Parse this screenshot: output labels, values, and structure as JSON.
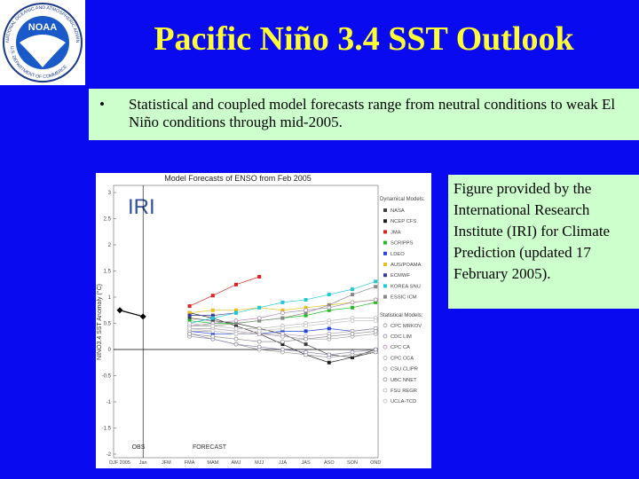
{
  "logo": {
    "name": "NOAA",
    "ring_top": "NATIONAL OCEANIC AND ATMOSPHERIC ADMINISTRATION",
    "ring_bottom": "U.S. DEPARTMENT OF COMMERCE"
  },
  "title": "Pacific Niño 3.4 SST Outlook",
  "bullet": {
    "marker": "•",
    "text": "Statistical and coupled model forecasts range from neutral conditions to weak El Niño conditions through mid-2005."
  },
  "caption": "Figure provided by the International Research Institute (IRI) for Climate Prediction (updated 17 February 2005).",
  "chart_data": {
    "type": "line",
    "title": "Model Forecasts of ENSO from Feb 2005",
    "watermark": "IRI",
    "y_label": "NINO3.4 SST Anomaly (°C)",
    "obs_label": "OBS",
    "forecast_label": "FORECAST",
    "dynamic_heading": "Dynamical Models:",
    "statistical_heading": "Statistical Models:",
    "categories": [
      "DJF 2005",
      "Jan",
      "JFM",
      "FMA",
      "MAM",
      "AMJ",
      "MJJ",
      "JJA",
      "JAS",
      "ASO",
      "SON",
      "OND"
    ],
    "ylim": [
      -2,
      3
    ],
    "yticks": [
      3,
      2.5,
      2,
      1.5,
      1,
      0.5,
      0,
      -0.5,
      -1,
      -1.5,
      -2
    ],
    "observed": {
      "color": "#000000",
      "values": [
        0.75,
        0.63,
        null,
        null,
        null,
        null,
        null,
        null,
        null,
        null,
        null,
        null
      ]
    },
    "series": [
      {
        "name": "NASA",
        "group": "dynamic",
        "color": "#404040",
        "values": [
          null,
          null,
          null,
          0.6,
          0.55,
          0.5,
          0.4,
          0.3,
          0.1,
          -0.1,
          -0.15,
          -0.05
        ]
      },
      {
        "name": "NCEP CFS",
        "group": "dynamic",
        "color": "#202020",
        "values": [
          null,
          null,
          null,
          0.7,
          0.6,
          0.45,
          0.3,
          0.1,
          -0.1,
          -0.25,
          -0.15,
          0.0
        ]
      },
      {
        "name": "JMA",
        "group": "dynamic",
        "color": "#dd2222",
        "values": [
          null,
          null,
          null,
          0.83,
          1.03,
          1.24,
          1.39,
          null,
          null,
          null,
          null,
          null
        ]
      },
      {
        "name": "SCRIPPS",
        "group": "dynamic",
        "color": "#22bb22",
        "values": [
          null,
          null,
          null,
          0.55,
          0.5,
          0.5,
          0.55,
          0.6,
          0.65,
          0.75,
          0.8,
          0.9
        ]
      },
      {
        "name": "LDEO",
        "group": "dynamic",
        "color": "#2244dd",
        "values": [
          null,
          null,
          null,
          0.35,
          0.3,
          0.3,
          0.3,
          0.35,
          0.35,
          0.4,
          0.35,
          0.4
        ]
      },
      {
        "name": "AUS/POAMA",
        "group": "dynamic",
        "color": "#e8c020",
        "values": [
          null,
          null,
          null,
          0.7,
          0.75,
          0.75,
          0.8,
          0.75,
          0.8,
          0.85,
          0.9,
          0.95
        ]
      },
      {
        "name": "ECMWF",
        "group": "dynamic",
        "color": "#3a3a9a",
        "values": [
          null,
          null,
          null,
          0.65,
          0.65,
          0.7,
          null,
          null,
          null,
          null,
          null,
          null
        ]
      },
      {
        "name": "KOREA SNU",
        "group": "dynamic",
        "color": "#22c8d8",
        "values": [
          null,
          null,
          null,
          0.5,
          0.6,
          0.7,
          0.8,
          0.9,
          0.95,
          1.05,
          1.15,
          1.3
        ]
      },
      {
        "name": "ESSIC ICM",
        "group": "dynamic",
        "color": "#888888",
        "values": [
          null,
          null,
          null,
          0.45,
          0.45,
          0.5,
          0.55,
          0.6,
          0.7,
          0.85,
          1.05,
          1.2
        ]
      },
      {
        "name": "CPC MRKOV",
        "group": "statistical",
        "color": "#9a9a9a",
        "values": [
          null,
          null,
          null,
          0.25,
          0.2,
          0.1,
          0.0,
          -0.05,
          -0.1,
          -0.15,
          -0.1,
          -0.05
        ]
      },
      {
        "name": "CDC LIM",
        "group": "statistical",
        "color": "#8888aa",
        "values": [
          null,
          null,
          null,
          0.3,
          0.2,
          0.1,
          0.05,
          0.0,
          -0.05,
          -0.1,
          -0.05,
          0.0
        ]
      },
      {
        "name": "CPC CA",
        "group": "statistical",
        "color": "#aa88aa",
        "values": [
          null,
          null,
          null,
          0.45,
          0.5,
          0.55,
          0.6,
          0.7,
          0.75,
          0.8,
          0.9,
          0.95
        ]
      },
      {
        "name": "CPC CCA",
        "group": "statistical",
        "color": "#a0a0a0",
        "values": [
          null,
          null,
          null,
          0.35,
          0.35,
          0.3,
          0.3,
          0.25,
          0.2,
          0.2,
          0.25,
          0.3
        ]
      },
      {
        "name": "CSU CLIPR",
        "group": "statistical",
        "color": "#b0a0b0",
        "values": [
          null,
          null,
          null,
          0.4,
          0.4,
          0.35,
          0.3,
          0.3,
          0.25,
          0.3,
          0.35,
          0.4
        ]
      },
      {
        "name": "UBC NNET",
        "group": "statistical",
        "color": "#909090",
        "values": [
          null,
          null,
          null,
          0.3,
          0.25,
          0.2,
          0.15,
          0.15,
          0.2,
          0.25,
          0.3,
          0.35
        ]
      },
      {
        "name": "FSU REGR",
        "group": "statistical",
        "color": "#b8b8b8",
        "values": [
          null,
          null,
          null,
          0.5,
          0.45,
          0.4,
          0.4,
          0.45,
          0.5,
          0.55,
          0.6,
          0.6
        ]
      },
      {
        "name": "UCLA-TCD",
        "group": "statistical",
        "color": "#c0c0c0",
        "values": [
          null,
          null,
          null,
          0.4,
          0.35,
          0.3,
          0.35,
          0.4,
          0.45,
          0.5,
          0.55,
          0.55
        ]
      }
    ]
  }
}
